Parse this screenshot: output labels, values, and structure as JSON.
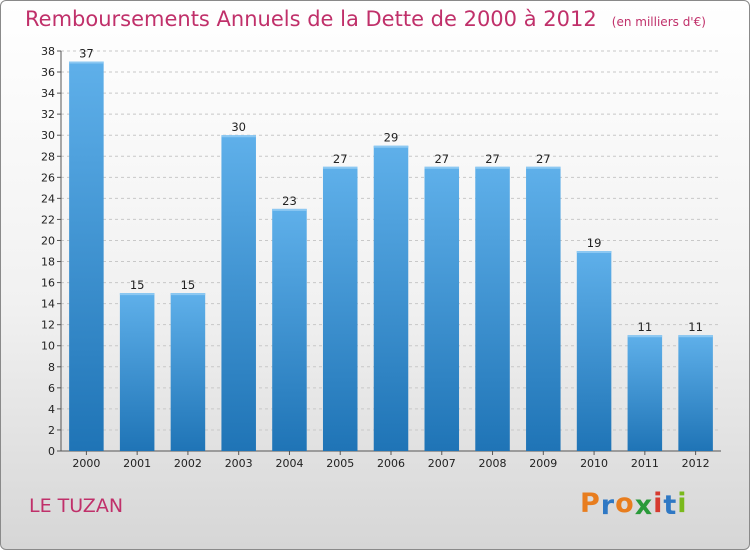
{
  "header": {
    "title": "Remboursements Annuels de la Dette de 2000 à 2012",
    "unit": "(en milliers d'€)"
  },
  "footer": {
    "city": "LE TUZAN",
    "logo_text": "Proxiti"
  },
  "colors": {
    "title": "#c0306a",
    "bar_top": "#5fb0ea",
    "bar_bottom": "#1f74b6",
    "grid": "#c8c8c8",
    "logo_letters": [
      "#e87d1e",
      "#2f78c4",
      "#e87d1e",
      "#2a9a3a",
      "#d63a2f",
      "#2f78c4",
      "#7ab91c"
    ]
  },
  "chart_data": {
    "type": "bar",
    "title": "Remboursements Annuels de la Dette de 2000 à 2012",
    "xlabel": "",
    "ylabel": "",
    "ylim": [
      0,
      38
    ],
    "ytick_step": 2,
    "grid": true,
    "categories": [
      "2000",
      "2001",
      "2002",
      "2003",
      "2004",
      "2005",
      "2006",
      "2007",
      "2008",
      "2009",
      "2010",
      "2011",
      "2012"
    ],
    "values": [
      37,
      15,
      15,
      30,
      23,
      27,
      29,
      27,
      27,
      27,
      19,
      11,
      11
    ]
  }
}
